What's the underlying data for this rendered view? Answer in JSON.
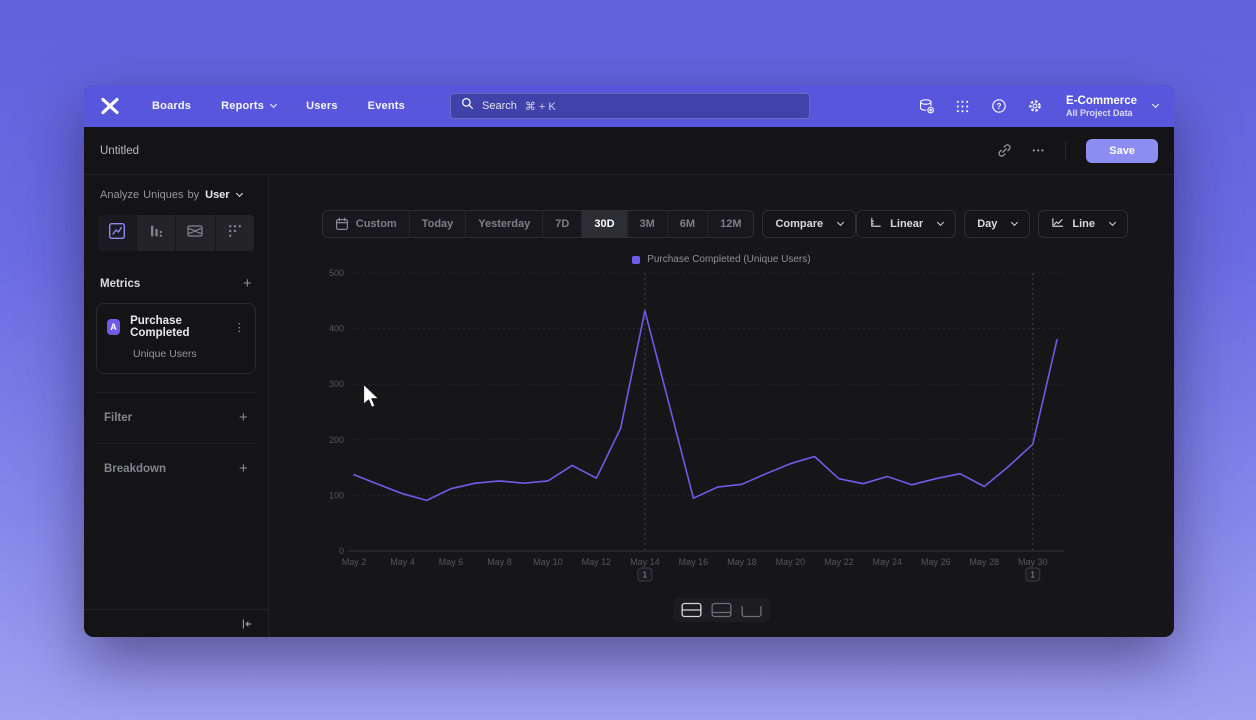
{
  "nav": {
    "brand": "Mixpanel",
    "items": [
      {
        "label": "Boards",
        "chevron": false
      },
      {
        "label": "Reports",
        "chevron": true
      },
      {
        "label": "Users",
        "chevron": false
      },
      {
        "label": "Events",
        "chevron": false
      }
    ],
    "search_placeholder": "Search",
    "search_shortcut": "⌘ + K",
    "project_name": "E-Commerce",
    "project_scope": "All Project Data"
  },
  "report_header": {
    "title": "Untitled",
    "save_label": "Save"
  },
  "icons": {
    "plus": "+",
    "more_vertical": "⋮",
    "more_horizontal": "•••"
  },
  "sidebar": {
    "analyze_prefix": "Analyze",
    "analyze_measure": "Uniques",
    "analyze_connector": "by",
    "analyze_entity": "User",
    "tabs": [
      "insights",
      "funnels",
      "flows",
      "retention"
    ],
    "metrics_label": "Metrics",
    "metric": {
      "letter": "A",
      "event": "Purchase Completed",
      "measure": "Unique Users"
    },
    "filter_label": "Filter",
    "breakdown_label": "Breakdown"
  },
  "toolbar": {
    "date_ranges": [
      "Custom",
      "Today",
      "Yesterday",
      "7D",
      "30D",
      "3M",
      "6M",
      "12M"
    ],
    "active_range": "30D",
    "compare_label": "Compare",
    "scale_label": "Linear",
    "interval_label": "Day",
    "type_label": "Line"
  },
  "chart_data": {
    "type": "line",
    "legend": [
      "Purchase Completed (Unique Users)"
    ],
    "legend_position": "top",
    "series_color": "#6e5ce8",
    "x": [
      "May 2",
      "May 3",
      "May 4",
      "May 5",
      "May 6",
      "May 7",
      "May 8",
      "May 9",
      "May 10",
      "May 11",
      "May 12",
      "May 13",
      "May 14",
      "May 15",
      "May 16",
      "May 17",
      "May 18",
      "May 19",
      "May 20",
      "May 21",
      "May 22",
      "May 23",
      "May 24",
      "May 25",
      "May 26",
      "May 27",
      "May 28",
      "May 29",
      "May 30",
      "May 31"
    ],
    "values": [
      137,
      120,
      103,
      91,
      112,
      122,
      126,
      122,
      126,
      154,
      131,
      221,
      432,
      264,
      95,
      115,
      120,
      139,
      157,
      170,
      130,
      121,
      134,
      119,
      130,
      139,
      116,
      152,
      192,
      380
    ],
    "x_tick_step": 2,
    "ylim": [
      0,
      500
    ],
    "y_ticks": [
      0,
      100,
      200,
      300,
      400,
      500
    ],
    "grid": true,
    "annotations": [
      {
        "label": "1",
        "x": "May 14"
      },
      {
        "label": "1",
        "x": "May 30"
      }
    ]
  }
}
